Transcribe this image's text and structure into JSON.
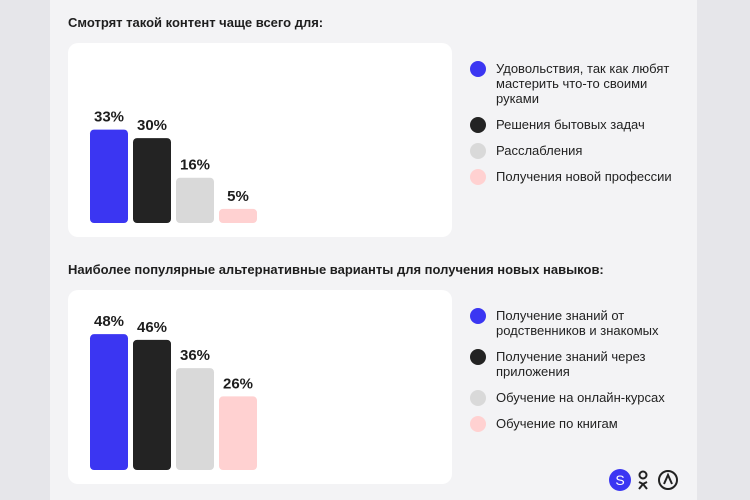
{
  "chart_data": [
    {
      "type": "bar",
      "title": "Смотрят такой контент чаще всего для:",
      "categories": [
        "Удовольствия, так как любят мастерить что-то своими руками",
        "Решения бытовых задач",
        "Расслабления",
        "Получения новой профессии"
      ],
      "values": [
        33,
        30,
        16,
        5
      ],
      "value_labels": [
        "33%",
        "30%",
        "16%",
        "5%"
      ],
      "colors": [
        "#3b36f2",
        "#232323",
        "#d9d9d9",
        "#ffd1d1"
      ]
    },
    {
      "type": "bar",
      "title": "Наиболее популярные альтернативные варианты для получения новых навыков:",
      "categories": [
        "Получение знаний от родственников и знакомых",
        "Получение знаний через приложения",
        "Обучение на онлайн-курсах",
        "Обучение по книгам"
      ],
      "values": [
        48,
        46,
        36,
        26
      ],
      "value_labels": [
        "48%",
        "46%",
        "36%",
        "26%"
      ],
      "colors": [
        "#3b36f2",
        "#232323",
        "#d9d9d9",
        "#ffd1d1"
      ]
    }
  ],
  "social": [
    "S"
  ]
}
